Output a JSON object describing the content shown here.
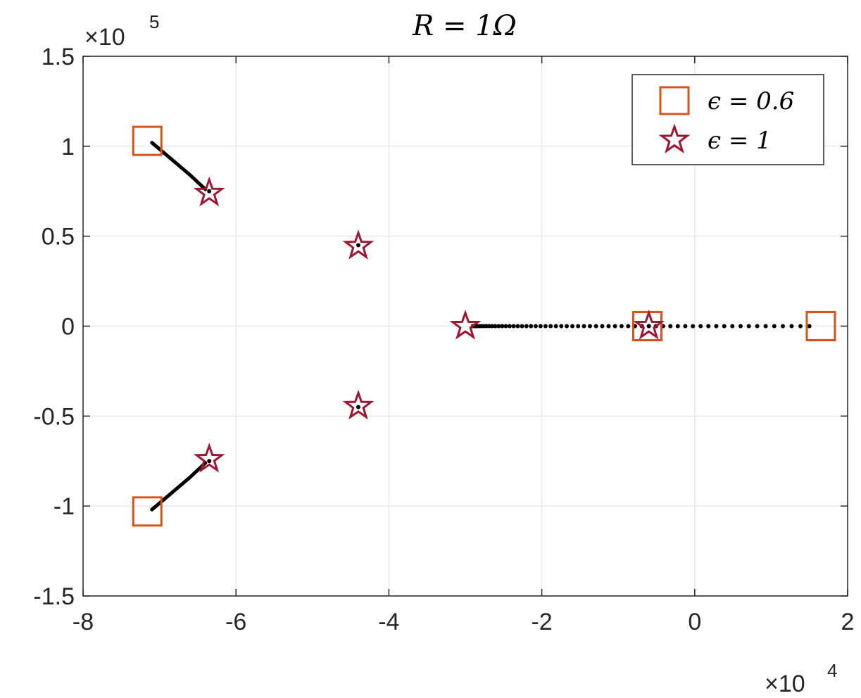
{
  "chart_data": {
    "type": "scatter",
    "title": "R = 1Ω",
    "xlabel": "",
    "ylabel": "",
    "xlim": [
      -80000,
      20000
    ],
    "ylim": [
      -150000,
      150000
    ],
    "x_ticks": [
      -80000,
      -60000,
      -40000,
      -20000,
      0,
      20000
    ],
    "y_ticks": [
      -150000,
      -100000,
      -50000,
      0,
      50000,
      100000,
      150000
    ],
    "x_tick_labels": [
      "-8",
      "-6",
      "-4",
      "-2",
      "0",
      "2"
    ],
    "y_tick_labels": [
      "-1.5",
      "-1",
      "-0.5",
      "0",
      "0.5",
      "1",
      "1.5"
    ],
    "x_multiplier": {
      "base": "×10",
      "exp": "4"
    },
    "y_multiplier": {
      "base": "×10",
      "exp": "5"
    },
    "grid": true,
    "legend_position": "top-right",
    "series": [
      {
        "name": "ϵ = 0.6",
        "marker": "square",
        "color": "#D95319",
        "points": [
          [
            -71600,
            103000
          ],
          [
            -71600,
            -103000
          ],
          [
            -6200,
            0
          ],
          [
            16500,
            0
          ]
        ]
      },
      {
        "name": "ϵ = 1",
        "marker": "pentagram",
        "color": "#A2142F",
        "points": [
          [
            -63500,
            74000
          ],
          [
            -63500,
            -74000
          ],
          [
            -44000,
            44500
          ],
          [
            -44000,
            -44500
          ],
          [
            -30000,
            0
          ],
          [
            -6000,
            0
          ]
        ]
      }
    ],
    "loci": [
      {
        "type": "curve",
        "points": [
          [
            -71000,
            102000
          ],
          [
            -68500,
            93000
          ],
          [
            -66000,
            84000
          ],
          [
            -64000,
            76000
          ]
        ]
      },
      {
        "type": "curve",
        "points": [
          [
            -71000,
            -102000
          ],
          [
            -68500,
            -93000
          ],
          [
            -66000,
            -84000
          ],
          [
            -64000,
            -76000
          ]
        ]
      },
      {
        "type": "dots",
        "from": [
          -29000,
          0
        ],
        "to": [
          15000,
          0
        ]
      },
      {
        "type": "dots",
        "points": [
          [
            -44000,
            45000
          ],
          [
            -44000,
            -45000
          ],
          [
            -63500,
            75000
          ],
          [
            -63500,
            -75000
          ],
          [
            -6000,
            0
          ]
        ]
      }
    ]
  }
}
